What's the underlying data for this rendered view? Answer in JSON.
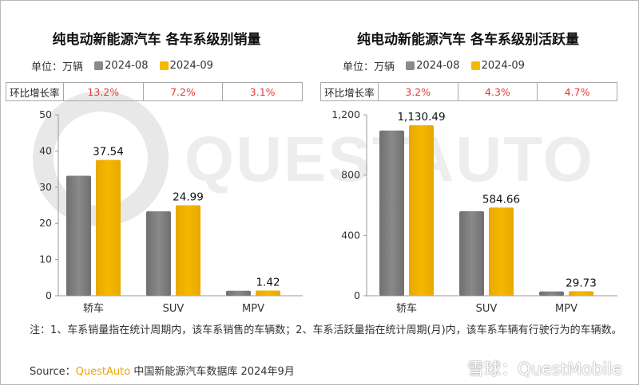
{
  "watermark": "QUESTAUTO",
  "legend": {
    "unit": "单位：万辆",
    "series": [
      "2024-08",
      "2024-09"
    ]
  },
  "colors": {
    "series_2024_08": "#8a8a8a",
    "series_2024_09": "#f5b800",
    "mom": "#e03a3a"
  },
  "chart_data": [
    {
      "type": "bar",
      "title": "纯电动新能源汽车 各车系级别销量",
      "categories": [
        "轿车",
        "SUV",
        "MPV"
      ],
      "series": [
        {
          "name": "2024-08",
          "values": [
            33.16,
            23.32,
            1.38
          ]
        },
        {
          "name": "2024-09",
          "values": [
            37.54,
            24.99,
            1.42
          ]
        }
      ],
      "data_labels": [
        "37.54",
        "24.99",
        "1.42"
      ],
      "ylim": [
        0,
        50
      ],
      "yticks": [
        0,
        10,
        20,
        30,
        40,
        50
      ],
      "ytick_labels": [
        "0",
        "10",
        "20",
        "30",
        "40",
        "50"
      ],
      "mom_label": "环比增长率",
      "mom": [
        "13.2%",
        "7.2%",
        "3.1%"
      ]
    },
    {
      "type": "bar",
      "title": "纯电动新能源汽车 各车系级别活跃量",
      "categories": [
        "轿车",
        "SUV",
        "MPV"
      ],
      "series": [
        {
          "name": "2024-08",
          "values": [
            1095.4,
            560.5,
            28.4
          ]
        },
        {
          "name": "2024-09",
          "values": [
            1130.49,
            584.66,
            29.73
          ]
        }
      ],
      "data_labels": [
        "1,130.49",
        "584.66",
        "29.73"
      ],
      "ylim": [
        0,
        1200
      ],
      "yticks": [
        0,
        400,
        800,
        1200
      ],
      "ytick_labels": [
        "0",
        "400",
        "800",
        "1,200"
      ],
      "mom_label": "环比增长率",
      "mom": [
        "3.2%",
        "4.3%",
        "4.7%"
      ]
    }
  ],
  "footnote": "注：1、车系销量指在统计周期内，该车系销售的车辆数；2、车系活跃量指在统计周期(月)内，该车系车辆有行驶行为的车辆数。",
  "source": {
    "prefix": "Source：",
    "brand": "QuestAuto",
    "text": " 中国新能源汽车数据库 2024年9月"
  },
  "credit": "雪球：QuestMobile"
}
